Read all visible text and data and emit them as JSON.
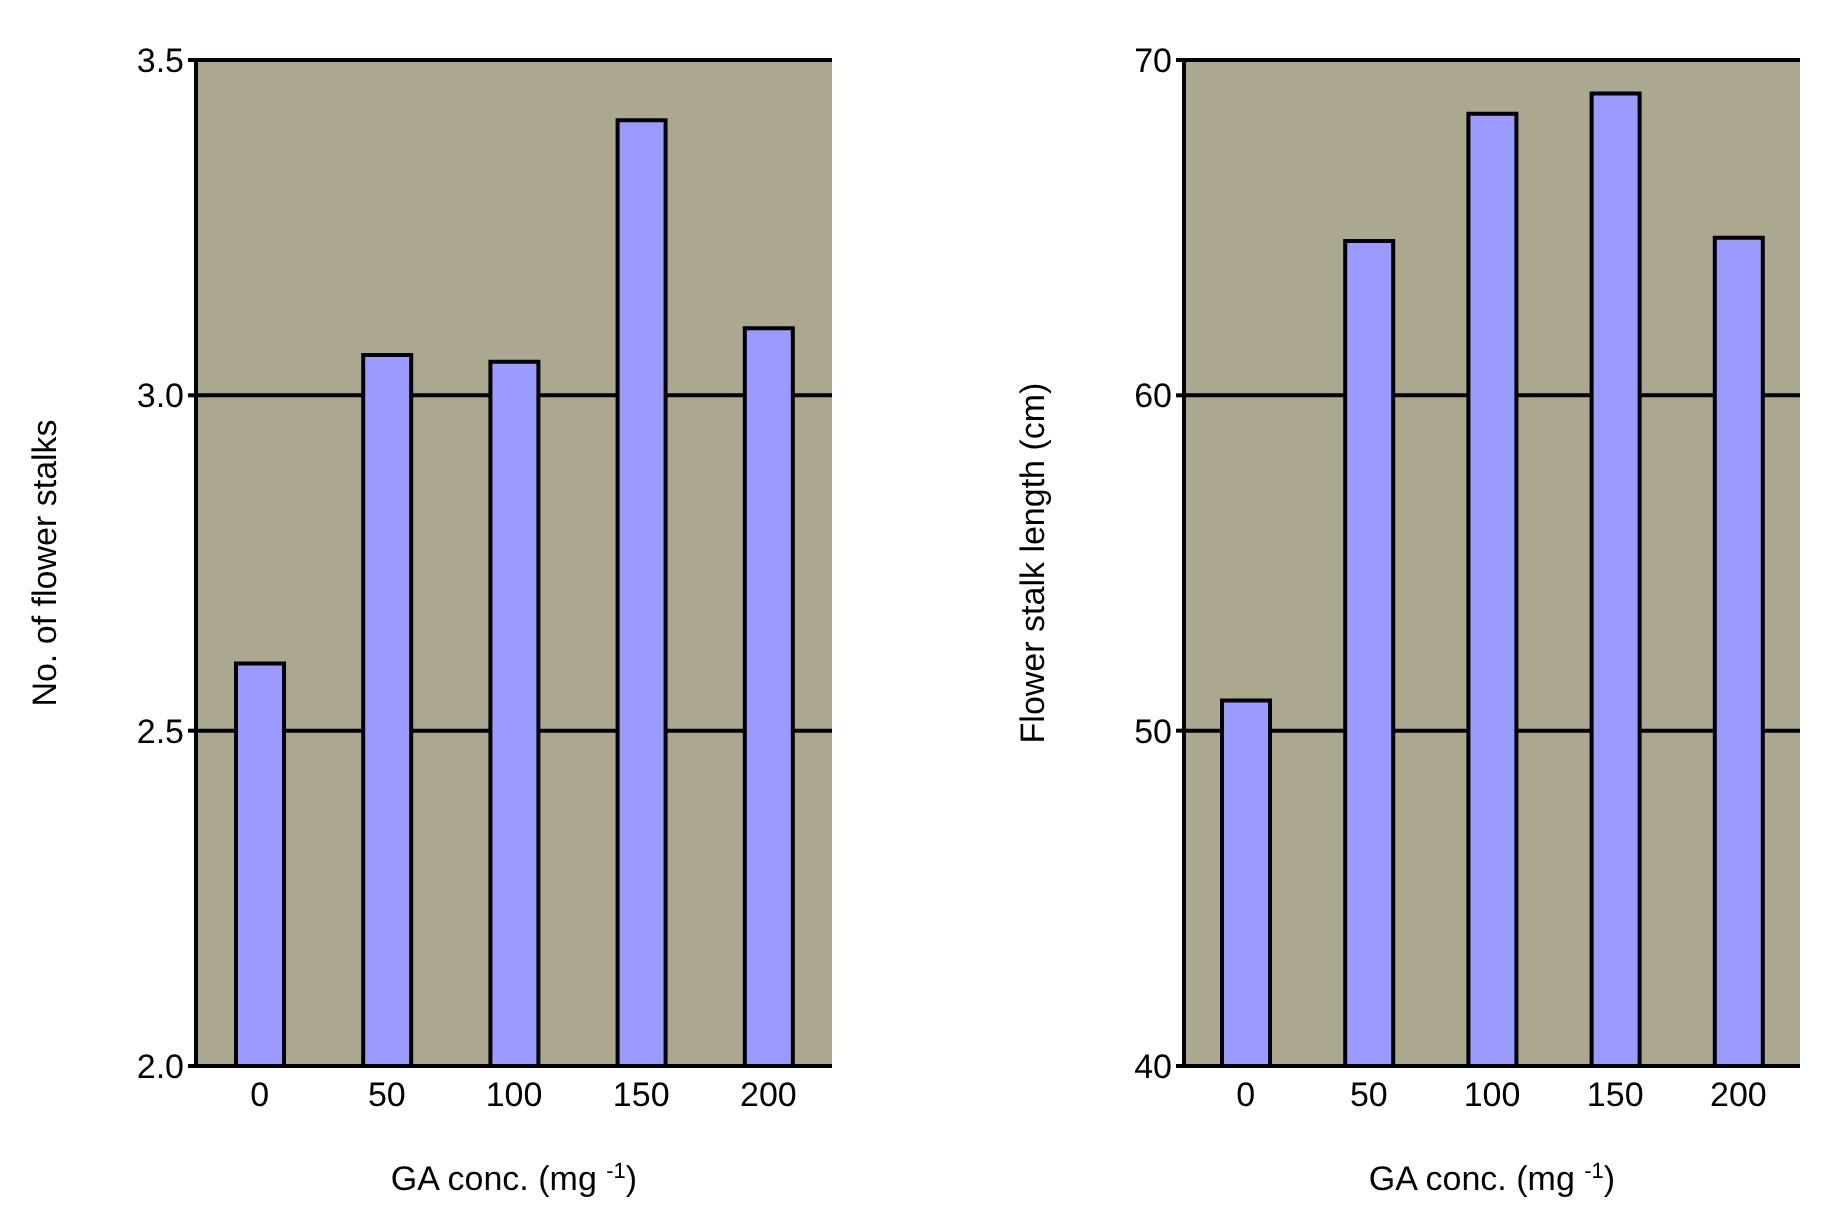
{
  "chart_data": [
    {
      "type": "bar",
      "categories": [
        "0",
        "50",
        "100",
        "150",
        "200"
      ],
      "values": [
        2.6,
        3.06,
        3.05,
        3.41,
        3.1
      ],
      "color": "#9a9aff",
      "xlabel": "GA conc. (mg $^{-1}$)",
      "ylabel": "No. of flower stalks",
      "ylim": [
        2.0,
        3.5
      ],
      "yticks": [
        {
          "value": 2.0,
          "label": "2.0"
        },
        {
          "value": 2.5,
          "label": "2.5"
        },
        {
          "value": 3.0,
          "label": "3.0"
        },
        {
          "value": 3.5,
          "label": "3.5"
        }
      ],
      "grid": "y"
    },
    {
      "type": "bar",
      "categories": [
        "0",
        "50",
        "100",
        "150",
        "200"
      ],
      "values": [
        50.9,
        64.6,
        68.4,
        69.0,
        64.7
      ],
      "color": "#9a9aff",
      "xlabel": "GA conc. (mg $^{-1}$)",
      "ylabel": "Flower stalk length (cm)",
      "ylim": [
        40,
        70
      ],
      "yticks": [
        40,
        50,
        60,
        70
      ],
      "grid": "y"
    }
  ]
}
